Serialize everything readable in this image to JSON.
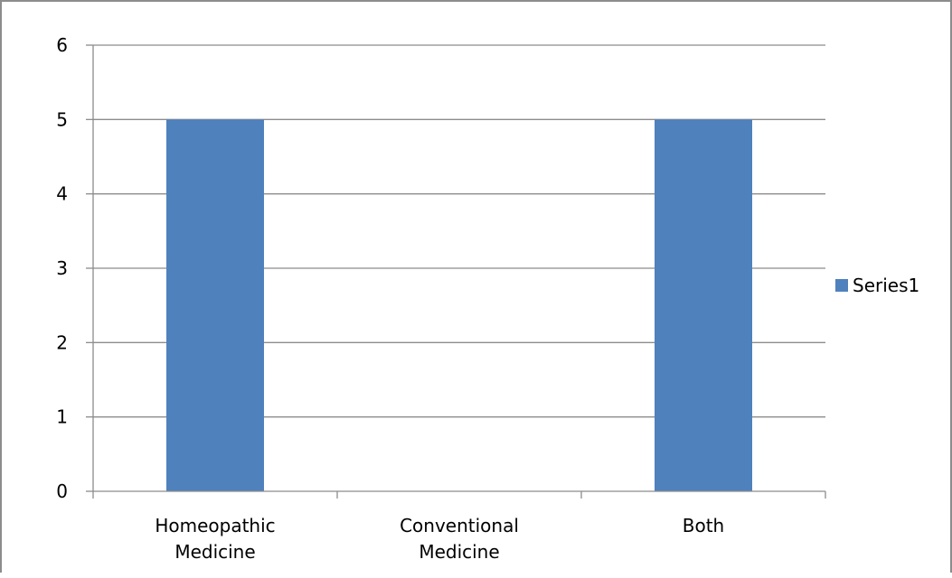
{
  "chart_data": {
    "type": "bar",
    "categories": [
      [
        "Homeopathic",
        "Medicine"
      ],
      [
        "Conventional",
        "Medicine"
      ],
      [
        "Both"
      ]
    ],
    "series": [
      {
        "name": "Series1",
        "values": [
          5,
          0,
          5
        ],
        "color": "#4f81bd"
      }
    ],
    "ylim": [
      0,
      6
    ],
    "yticks": [
      0,
      1,
      2,
      3,
      4,
      5,
      6
    ],
    "grid": true,
    "legend_position": "right",
    "gridline_color": "#8c8c8c",
    "axis_color": "#8c8c8c"
  }
}
